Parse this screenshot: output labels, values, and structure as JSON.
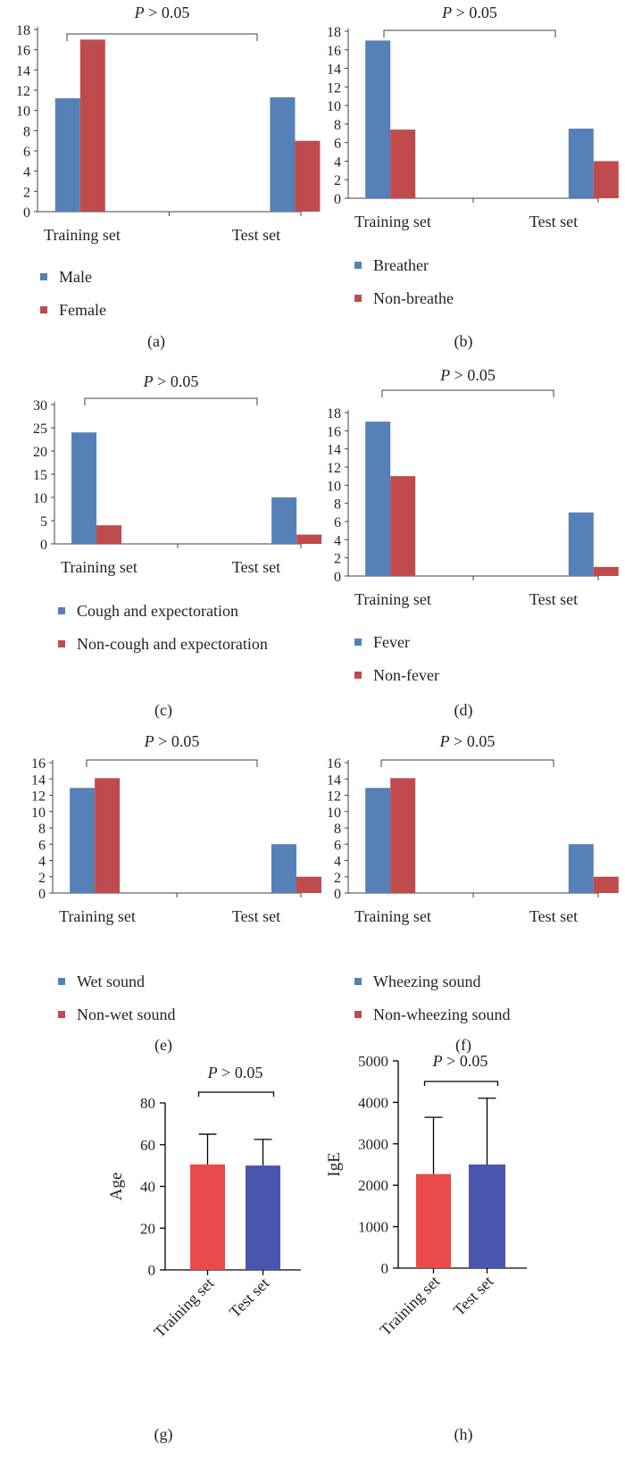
{
  "colors": {
    "blue": "#5580b8",
    "red": "#bf4b4d",
    "bright_red": "#ea4a4a",
    "indigo": "#4b55ad",
    "axis": "#404040"
  },
  "chart_data": [
    {
      "panel": "(a)",
      "type": "bar",
      "categories": [
        "Training set",
        "Test set"
      ],
      "series": [
        {
          "name": "Male",
          "values": [
            11.2,
            11.3
          ],
          "color": "#5580b8"
        },
        {
          "name": "Female",
          "values": [
            17,
            7
          ],
          "color": "#bf4b4d"
        }
      ],
      "ylim": [
        0,
        18
      ],
      "yticks": [
        0,
        2,
        4,
        6,
        8,
        10,
        12,
        14,
        16,
        18
      ],
      "annotation": {
        "italic": "P",
        "rest": " > 0.05"
      },
      "legend": "below"
    },
    {
      "panel": "(b)",
      "type": "bar",
      "categories": [
        "Training set",
        "Test set"
      ],
      "series": [
        {
          "name": "Breather",
          "values": [
            17,
            7.5
          ],
          "color": "#5580b8"
        },
        {
          "name": "Non-breathe",
          "values": [
            7.4,
            4
          ],
          "color": "#bf4b4d"
        }
      ],
      "ylim": [
        0,
        18
      ],
      "yticks": [
        0,
        2,
        4,
        6,
        8,
        10,
        12,
        14,
        16,
        18
      ],
      "annotation": {
        "italic": "P",
        "rest": " > 0.05"
      },
      "legend": "below"
    },
    {
      "panel": "(c)",
      "type": "bar",
      "categories": [
        "Training set",
        "Test set"
      ],
      "series": [
        {
          "name": "Cough and expectoration",
          "values": [
            24,
            10
          ],
          "color": "#5580b8"
        },
        {
          "name": "Non-cough and expectoration",
          "values": [
            4,
            2
          ],
          "color": "#bf4b4d"
        }
      ],
      "ylim": [
        0,
        30
      ],
      "yticks": [
        0,
        5,
        10,
        15,
        20,
        25,
        30
      ],
      "annotation": {
        "italic": "P",
        "rest": " > 0.05"
      },
      "legend": "below"
    },
    {
      "panel": "(d)",
      "type": "bar",
      "categories": [
        "Training set",
        "Test set"
      ],
      "series": [
        {
          "name": "Fever",
          "values": [
            17,
            7
          ],
          "color": "#5580b8"
        },
        {
          "name": "Non-fever",
          "values": [
            11,
            1
          ],
          "color": "#bf4b4d"
        }
      ],
      "ylim": [
        0,
        18
      ],
      "yticks": [
        0,
        2,
        4,
        6,
        8,
        10,
        12,
        14,
        16,
        18
      ],
      "annotation": {
        "italic": "P",
        "rest": " > 0.05"
      },
      "legend": "below"
    },
    {
      "panel": "(e)",
      "type": "bar",
      "categories": [
        "Training set",
        "Test set"
      ],
      "series": [
        {
          "name": "Wet sound",
          "values": [
            12.9,
            6
          ],
          "color": "#5580b8"
        },
        {
          "name": "Non-wet sound",
          "values": [
            14.1,
            2
          ],
          "color": "#bf4b4d"
        }
      ],
      "ylim": [
        0,
        16
      ],
      "yticks": [
        0,
        2,
        4,
        6,
        8,
        10,
        12,
        14,
        16
      ],
      "annotation": {
        "italic": "P",
        "rest": " > 0.05"
      },
      "legend": "below"
    },
    {
      "panel": "(f)",
      "type": "bar",
      "categories": [
        "Training set",
        "Test set"
      ],
      "series": [
        {
          "name": "Wheezing sound",
          "values": [
            12.9,
            6
          ],
          "color": "#5580b8"
        },
        {
          "name": "Non-wheezing sound",
          "values": [
            14.1,
            2
          ],
          "color": "#bf4b4d"
        }
      ],
      "ylim": [
        0,
        16
      ],
      "yticks": [
        0,
        2,
        4,
        6,
        8,
        10,
        12,
        14,
        16
      ],
      "annotation": {
        "italic": "P",
        "rest": " > 0.05"
      },
      "legend": "below"
    },
    {
      "panel": "(g)",
      "type": "bar",
      "categories": [
        "Training set",
        "Test set"
      ],
      "values": [
        50.5,
        50
      ],
      "error": [
        14.5,
        12.5
      ],
      "colors": [
        "#ea4a4a",
        "#4b55ad"
      ],
      "ylabel": "Age",
      "ylim": [
        0,
        80
      ],
      "yticks": [
        0,
        20,
        40,
        60,
        80
      ],
      "annotation": {
        "italic": "P",
        "rest": " > 0.05"
      }
    },
    {
      "panel": "(h)",
      "type": "bar",
      "categories": [
        "Training set",
        "Test set"
      ],
      "values": [
        2270,
        2500
      ],
      "error": [
        1370,
        1600
      ],
      "colors": [
        "#ea4a4a",
        "#4b55ad"
      ],
      "ylabel": "IgE",
      "ylim": [
        0,
        5000
      ],
      "yticks": [
        0,
        1000,
        2000,
        3000,
        4000,
        5000
      ],
      "annotation": {
        "italic": "P",
        "rest": " > 0.05"
      }
    }
  ]
}
